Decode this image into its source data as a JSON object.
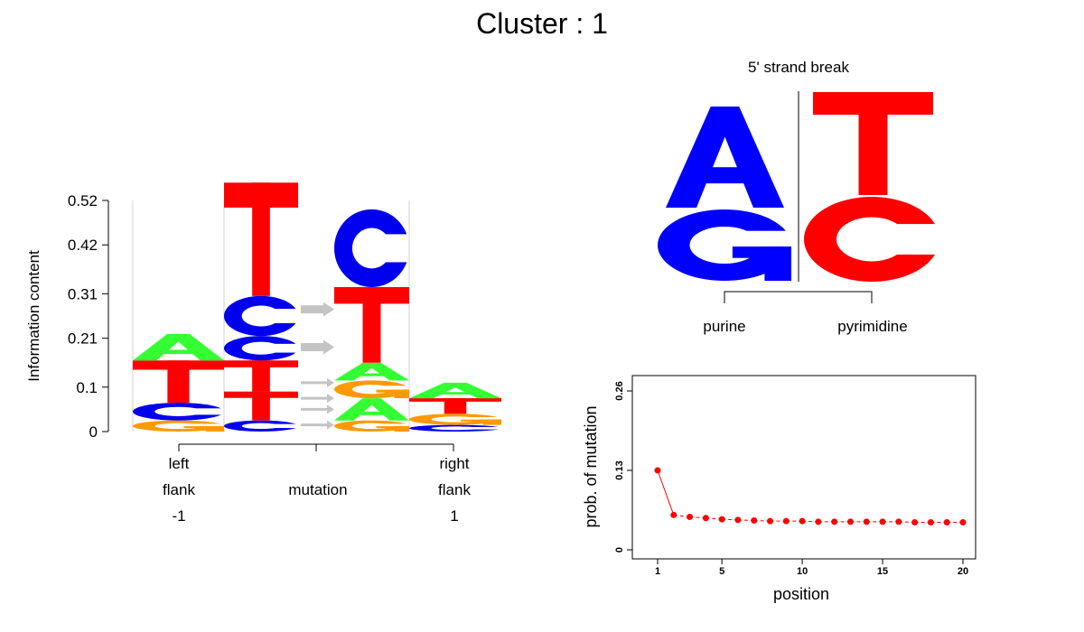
{
  "title": "Cluster : 1",
  "colors": {
    "A": "#33ff33",
    "C": "#0000ee",
    "G": "#ff9900",
    "T": "#ff0000",
    "purine": "#0000ff",
    "pyrimidine": "#ff0000",
    "point": "#ff0000",
    "arrow": "#c4c4c4"
  },
  "chart_data": [
    {
      "type": "sequence-logo",
      "ylabel": "Information content",
      "yticks": [
        "0.52",
        "0.42",
        "0.31",
        "0.21",
        "0.1",
        "0"
      ],
      "ylim": [
        0,
        0.52
      ],
      "xlabels": {
        "left": [
          "left",
          "flank",
          "-1"
        ],
        "mutation": "mutation",
        "right": [
          "right",
          "flank",
          "1"
        ]
      },
      "columns": [
        {
          "name": "left flank -1",
          "stack": [
            {
              "letter": "G",
              "height": 0.025
            },
            {
              "letter": "C",
              "height": 0.04
            },
            {
              "letter": "T",
              "height": 0.095
            },
            {
              "letter": "A",
              "height": 0.06
            }
          ]
        },
        {
          "name": "mutation from",
          "stack": [
            {
              "letter": "C",
              "height": 0.025
            },
            {
              "letter": "T",
              "height": 0.065
            },
            {
              "letter": "T",
              "height": 0.07
            },
            {
              "letter": "C",
              "height": 0.055
            },
            {
              "letter": "C",
              "height": 0.09
            },
            {
              "letter": "T",
              "height": 0.255
            }
          ]
        },
        {
          "name": "mutation to",
          "stack": [
            {
              "letter": "G",
              "height": 0.025
            },
            {
              "letter": "A",
              "height": 0.05
            },
            {
              "letter": "G",
              "height": 0.04
            },
            {
              "letter": "A",
              "height": 0.04
            },
            {
              "letter": "T",
              "height": 0.17
            },
            {
              "letter": "C",
              "height": 0.175
            }
          ]
        },
        {
          "name": "right flank 1",
          "stack": [
            {
              "letter": "C",
              "height": 0.015
            },
            {
              "letter": "G",
              "height": 0.025
            },
            {
              "letter": "T",
              "height": 0.035
            },
            {
              "letter": "A",
              "height": 0.035
            }
          ]
        }
      ],
      "arrows": [
        0.015,
        0.05,
        0.075,
        0.11,
        0.19,
        0.275
      ]
    },
    {
      "type": "strand-break-logo",
      "title": "5' strand break",
      "left_stack": [
        "G",
        "A"
      ],
      "right_stack": [
        "C",
        "T"
      ],
      "left_label": "purine",
      "right_label": "pyrimidine"
    },
    {
      "type": "line",
      "xlabel": "position",
      "ylabel": "prob. of mutation",
      "xticks": [
        "1",
        "5",
        "10",
        "15",
        "20"
      ],
      "yticks": [
        "0",
        "0.13",
        "0.26"
      ],
      "xlim": [
        1,
        20
      ],
      "ylim": [
        0,
        0.26
      ],
      "x": [
        1,
        2,
        3,
        4,
        5,
        6,
        7,
        8,
        9,
        10,
        11,
        12,
        13,
        14,
        15,
        16,
        17,
        18,
        19,
        20
      ],
      "y": [
        0.13,
        0.057,
        0.054,
        0.052,
        0.05,
        0.049,
        0.048,
        0.047,
        0.047,
        0.047,
        0.046,
        0.046,
        0.046,
        0.046,
        0.046,
        0.046,
        0.045,
        0.045,
        0.045,
        0.045
      ]
    }
  ]
}
